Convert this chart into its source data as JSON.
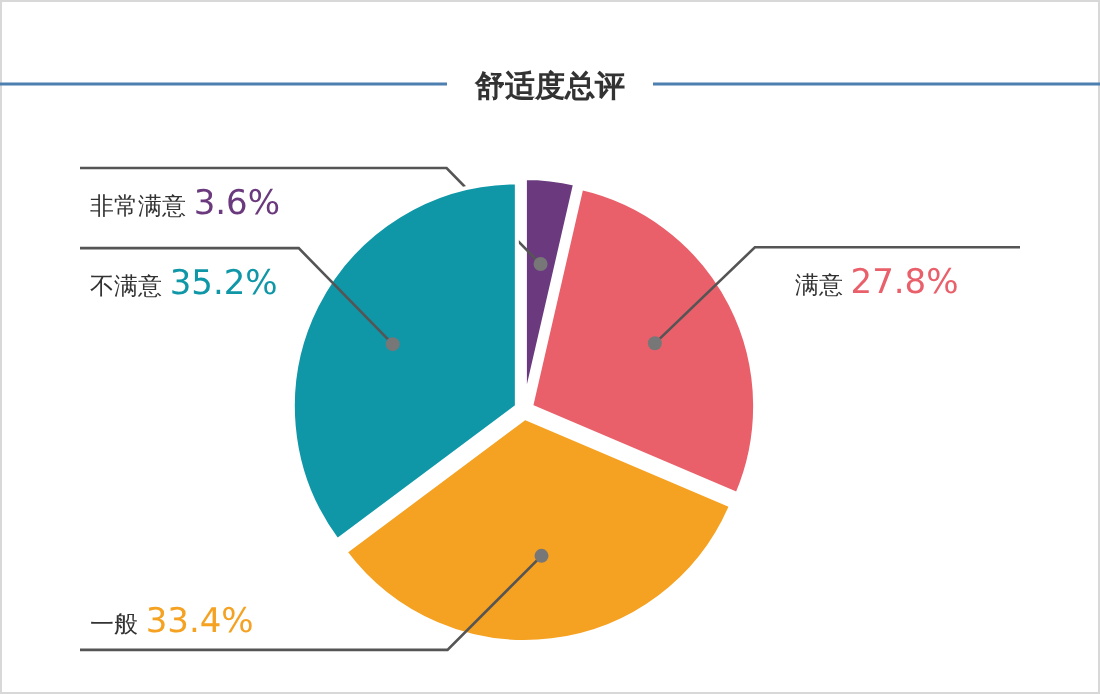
{
  "chart_data": {
    "type": "pie",
    "title": "舒适度总评",
    "categories": [
      "非常满意",
      "满意",
      "一般",
      "不满意"
    ],
    "values": [
      3.6,
      27.8,
      33.4,
      35.2
    ],
    "colors": [
      "#6b3a7e",
      "#e9606b",
      "#f5a121",
      "#0f97a8"
    ],
    "value_labels": [
      "3.6%",
      "27.8%",
      "33.4%",
      "35.2%"
    ]
  }
}
